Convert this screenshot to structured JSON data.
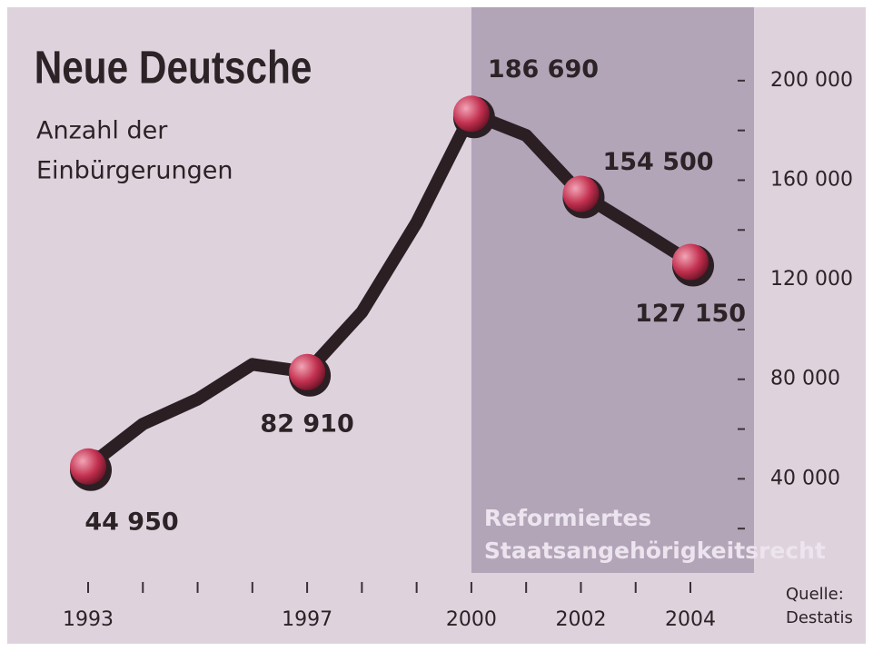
{
  "chart_data": {
    "type": "line",
    "title": "Neue Deutsche",
    "subtitle": [
      "Anzahl der",
      "Einbürgerungen"
    ],
    "x": [
      1993,
      1994,
      1995,
      1996,
      1997,
      1998,
      1999,
      2000,
      2001,
      2002,
      2003,
      2004
    ],
    "series": [
      {
        "name": "Einbürgerungen",
        "color": "#2b1f24",
        "values": [
          44950,
          62000,
          72000,
          86000,
          82910,
          107000,
          143000,
          186690,
          178000,
          154500,
          141000,
          127150
        ],
        "value_labels": [
          "44 950",
          null,
          null,
          null,
          "82 910",
          null,
          null,
          "186 690",
          null,
          "154 500",
          null,
          "127 150"
        ]
      }
    ],
    "marker_color": "#c2304f",
    "xlim": [
      1993,
      2004
    ],
    "xticks": [
      1993,
      1997,
      2000,
      2002,
      2004
    ],
    "x_minor_ticks": [
      1994,
      1995,
      1996,
      1998,
      1999,
      2001,
      2003
    ],
    "ylim": [
      0,
      220000
    ],
    "yticks": [
      {
        "value": 40000,
        "label": "40 000"
      },
      {
        "value": 80000,
        "label": "80 000"
      },
      {
        "value": 120000,
        "label": "120 000"
      },
      {
        "value": 160000,
        "label": "160 000"
      },
      {
        "value": 200000,
        "label": "200 000"
      }
    ],
    "y_minor_ticks": [
      20000,
      60000,
      100000,
      140000,
      180000
    ],
    "y_axis_side": "right",
    "shaded_region": {
      "from": 2000,
      "label": [
        "Reformiertes",
        "Staatsangehörigkeitsrecht"
      ],
      "color": "#b3a5b8"
    },
    "source": [
      "Quelle:",
      "Destatis"
    ]
  }
}
